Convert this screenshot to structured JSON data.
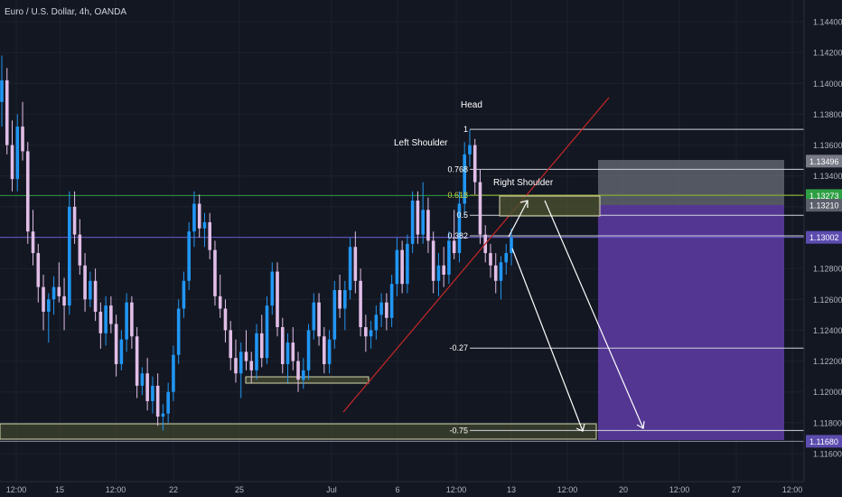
{
  "chart_data": {
    "type": "candlestick",
    "title": "Euro / U.S. Dollar, 4h, OANDA",
    "y_axis": {
      "ticks": [
        "1.14400",
        "1.14200",
        "1.14000",
        "1.13800",
        "1.13600",
        "1.13400",
        "1.13200",
        "1.13000",
        "1.12800",
        "1.12600",
        "1.12400",
        "1.12200",
        "1.12000",
        "1.11800",
        "1.11600"
      ],
      "tick_values": [
        1.144,
        1.142,
        1.14,
        1.138,
        1.136,
        1.134,
        1.132,
        1.13,
        1.128,
        1.126,
        1.124,
        1.122,
        1.12,
        1.118,
        1.116
      ],
      "ylim": [
        1.115,
        1.1458
      ]
    },
    "x_axis": {
      "ticks": [
        "12:00",
        "15",
        "12:00",
        "22",
        "25",
        "Jul",
        "6",
        "12:00",
        "13",
        "12:00",
        "20",
        "12:00",
        "27",
        "12:00"
      ]
    },
    "price_tags": [
      {
        "label": "1.13496",
        "value": 1.13496,
        "color": "#787b86"
      },
      {
        "label": "1.13273",
        "value": 1.13273,
        "color": "#2ea043"
      },
      {
        "label": "1.13210",
        "value": 1.1321,
        "color": "#5b5f6b"
      },
      {
        "label": "1.13002",
        "value": 1.13002,
        "color": "#5b4cae"
      },
      {
        "label": "1.11680",
        "value": 1.1168,
        "color": "#5b4cae"
      }
    ],
    "fib_levels": [
      {
        "label": "1",
        "value": 1.13702
      },
      {
        "label": "0.768",
        "value": 1.13443
      },
      {
        "label": "0.618",
        "value": 1.13275
      },
      {
        "label": "0.5",
        "value": 1.13145
      },
      {
        "label": "0.382",
        "value": 1.13012
      },
      {
        "label": "-0.27",
        "value": 1.12284
      },
      {
        "label": "-0.75",
        "value": 1.1175
      }
    ],
    "annotations": [
      "Head",
      "Left Shoulder",
      "Right Shoulder"
    ],
    "candles": [
      [
        1.1388,
        1.1418,
        1.1372,
        1.1402
      ],
      [
        1.1402,
        1.141,
        1.1354,
        1.136
      ],
      [
        1.136,
        1.1376,
        1.133,
        1.1338
      ],
      [
        1.1338,
        1.138,
        1.133,
        1.1372
      ],
      [
        1.1372,
        1.1388,
        1.135,
        1.1356
      ],
      [
        1.1356,
        1.1362,
        1.1296,
        1.1304
      ],
      [
        1.1304,
        1.1318,
        1.1282,
        1.129
      ],
      [
        1.129,
        1.1296,
        1.1258,
        1.1268
      ],
      [
        1.1268,
        1.1276,
        1.124,
        1.1252
      ],
      [
        1.1252,
        1.1264,
        1.1232,
        1.126
      ],
      [
        1.126,
        1.1275,
        1.125,
        1.1268
      ],
      [
        1.1268,
        1.1284,
        1.1258,
        1.1262
      ],
      [
        1.1262,
        1.1274,
        1.124,
        1.1256
      ],
      [
        1.1256,
        1.133,
        1.125,
        1.132
      ],
      [
        1.132,
        1.133,
        1.1296,
        1.1302
      ],
      [
        1.1302,
        1.1312,
        1.1276,
        1.1282
      ],
      [
        1.1282,
        1.129,
        1.1252,
        1.126
      ],
      [
        1.126,
        1.1278,
        1.1255,
        1.1272
      ],
      [
        1.1272,
        1.128,
        1.1246,
        1.1252
      ],
      [
        1.1252,
        1.1258,
        1.1228,
        1.1238
      ],
      [
        1.1238,
        1.1262,
        1.123,
        1.1256
      ],
      [
        1.1256,
        1.1262,
        1.1238,
        1.1244
      ],
      [
        1.1244,
        1.125,
        1.121,
        1.1218
      ],
      [
        1.1218,
        1.124,
        1.1214,
        1.1234
      ],
      [
        1.1234,
        1.1264,
        1.1226,
        1.1258
      ],
      [
        1.1258,
        1.1262,
        1.1228,
        1.1236
      ],
      [
        1.1236,
        1.1242,
        1.1196,
        1.1204
      ],
      [
        1.1204,
        1.1216,
        1.1198,
        1.1212
      ],
      [
        1.1212,
        1.1222,
        1.1188,
        1.1194
      ],
      [
        1.1194,
        1.121,
        1.1186,
        1.1204
      ],
      [
        1.1204,
        1.1212,
        1.1178,
        1.1184
      ],
      [
        1.1184,
        1.1192,
        1.1175,
        1.1186
      ],
      [
        1.1186,
        1.1206,
        1.118,
        1.12
      ],
      [
        1.12,
        1.123,
        1.1194,
        1.1224
      ],
      [
        1.1224,
        1.126,
        1.1218,
        1.1254
      ],
      [
        1.1254,
        1.1278,
        1.1248,
        1.1272
      ],
      [
        1.1272,
        1.131,
        1.1266,
        1.1304
      ],
      [
        1.1304,
        1.133,
        1.1294,
        1.1322
      ],
      [
        1.1322,
        1.1328,
        1.13,
        1.1306
      ],
      [
        1.1306,
        1.1316,
        1.1294,
        1.131
      ],
      [
        1.131,
        1.1316,
        1.1286,
        1.1292
      ],
      [
        1.1292,
        1.1298,
        1.1256,
        1.1262
      ],
      [
        1.1262,
        1.1276,
        1.1248,
        1.1254
      ],
      [
        1.1254,
        1.126,
        1.1232,
        1.124
      ],
      [
        1.124,
        1.1246,
        1.1214,
        1.1222
      ],
      [
        1.1222,
        1.1234,
        1.1206,
        1.1212
      ],
      [
        1.1212,
        1.1232,
        1.1196,
        1.1226
      ],
      [
        1.1226,
        1.124,
        1.1214,
        1.122
      ],
      [
        1.122,
        1.1226,
        1.1206,
        1.1214
      ],
      [
        1.1214,
        1.1244,
        1.1208,
        1.1238
      ],
      [
        1.1238,
        1.125,
        1.1216,
        1.1222
      ],
      [
        1.1222,
        1.1262,
        1.1218,
        1.1256
      ],
      [
        1.1256,
        1.1284,
        1.125,
        1.1278
      ],
      [
        1.1278,
        1.1284,
        1.1236,
        1.1242
      ],
      [
        1.1242,
        1.1248,
        1.1212,
        1.1218
      ],
      [
        1.1218,
        1.1238,
        1.1206,
        1.1232
      ],
      [
        1.1232,
        1.1242,
        1.1214,
        1.122
      ],
      [
        1.122,
        1.1226,
        1.12,
        1.1208
      ],
      [
        1.1208,
        1.1222,
        1.1202,
        1.1214
      ],
      [
        1.1214,
        1.1244,
        1.1208,
        1.124
      ],
      [
        1.124,
        1.1264,
        1.1234,
        1.1258
      ],
      [
        1.1258,
        1.1264,
        1.123,
        1.1236
      ],
      [
        1.1236,
        1.1242,
        1.1212,
        1.1218
      ],
      [
        1.1218,
        1.124,
        1.1212,
        1.1234
      ],
      [
        1.1234,
        1.1272,
        1.1228,
        1.1266
      ],
      [
        1.1266,
        1.1276,
        1.1248,
        1.1254
      ],
      [
        1.1254,
        1.1272,
        1.124,
        1.1266
      ],
      [
        1.1266,
        1.13,
        1.126,
        1.1294
      ],
      [
        1.1294,
        1.1304,
        1.1264,
        1.1272
      ],
      [
        1.1272,
        1.128,
        1.1236,
        1.1242
      ],
      [
        1.1242,
        1.125,
        1.1226,
        1.1236
      ],
      [
        1.1236,
        1.1246,
        1.1228,
        1.124
      ],
      [
        1.124,
        1.1256,
        1.1234,
        1.125
      ],
      [
        1.125,
        1.1264,
        1.1242,
        1.1258
      ],
      [
        1.1258,
        1.1264,
        1.124,
        1.1248
      ],
      [
        1.1248,
        1.1276,
        1.1242,
        1.127
      ],
      [
        1.127,
        1.13,
        1.1262,
        1.1292
      ],
      [
        1.1292,
        1.1298,
        1.1264,
        1.127
      ],
      [
        1.127,
        1.1302,
        1.1264,
        1.1296
      ],
      [
        1.1296,
        1.133,
        1.129,
        1.1324
      ],
      [
        1.1324,
        1.133,
        1.1296,
        1.1302
      ],
      [
        1.1302,
        1.1336,
        1.1296,
        1.1318
      ],
      [
        1.1318,
        1.1326,
        1.129,
        1.1298
      ],
      [
        1.1298,
        1.1304,
        1.1264,
        1.1272
      ],
      [
        1.1272,
        1.129,
        1.1262,
        1.1282
      ],
      [
        1.1282,
        1.1294,
        1.1268,
        1.1276
      ],
      [
        1.1276,
        1.1304,
        1.127,
        1.1298
      ],
      [
        1.1298,
        1.1318,
        1.1286,
        1.129
      ],
      [
        1.129,
        1.133,
        1.1284,
        1.1322
      ],
      [
        1.1322,
        1.1362,
        1.1314,
        1.1354
      ],
      [
        1.1354,
        1.137,
        1.1346,
        1.136
      ],
      [
        1.136,
        1.1364,
        1.1328,
        1.1336
      ],
      [
        1.1336,
        1.1344,
        1.1296,
        1.1302
      ],
      [
        1.1302,
        1.1308,
        1.1284,
        1.129
      ],
      [
        1.129,
        1.1296,
        1.1274,
        1.1282
      ],
      [
        1.1282,
        1.129,
        1.1264,
        1.1272
      ],
      [
        1.1272,
        1.1288,
        1.126,
        1.1284
      ],
      [
        1.1284,
        1.1296,
        1.1276,
        1.129
      ],
      [
        1.129,
        1.1306,
        1.1282,
        1.13
      ]
    ]
  }
}
